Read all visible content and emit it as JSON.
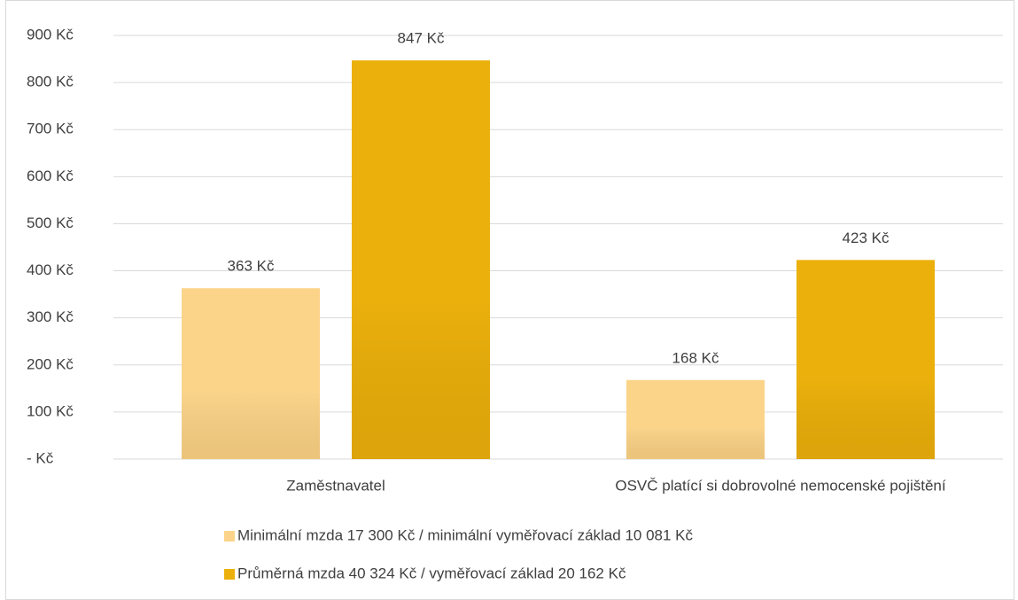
{
  "chart_data": {
    "type": "bar",
    "categories": [
      "Zaměstnavatel",
      "OSVČ platící si dobrovolné nemocenské pojištění"
    ],
    "series": [
      {
        "name": "Minimální mzda 17 300 Kč / minimální vyměřovací základ 10 081 Kč",
        "color": "#fbd48a",
        "values": [
          363,
          168
        ],
        "value_labels": [
          "363 Kč",
          "168 Kč"
        ]
      },
      {
        "name": "Průměrná mzda 40 324 Kč / vyměřovací základ 20 162 Kč",
        "color": "#ebb00c",
        "values": [
          847,
          423
        ],
        "value_labels": [
          "847 Kč",
          "423 Kč"
        ]
      }
    ],
    "ylim": [
      0,
      900
    ],
    "yticks": [
      {
        "value": 0,
        "label": "-   Kč"
      },
      {
        "value": 100,
        "label": "100 Kč"
      },
      {
        "value": 200,
        "label": "200 Kč"
      },
      {
        "value": 300,
        "label": "300 Kč"
      },
      {
        "value": 400,
        "label": "400 Kč"
      },
      {
        "value": 500,
        "label": "500 Kč"
      },
      {
        "value": 600,
        "label": "600 Kč"
      },
      {
        "value": 700,
        "label": "700 Kč"
      },
      {
        "value": 800,
        "label": "800 Kč"
      },
      {
        "value": 900,
        "label": "900 Kč"
      }
    ],
    "grid": true,
    "legend": "bottom"
  }
}
